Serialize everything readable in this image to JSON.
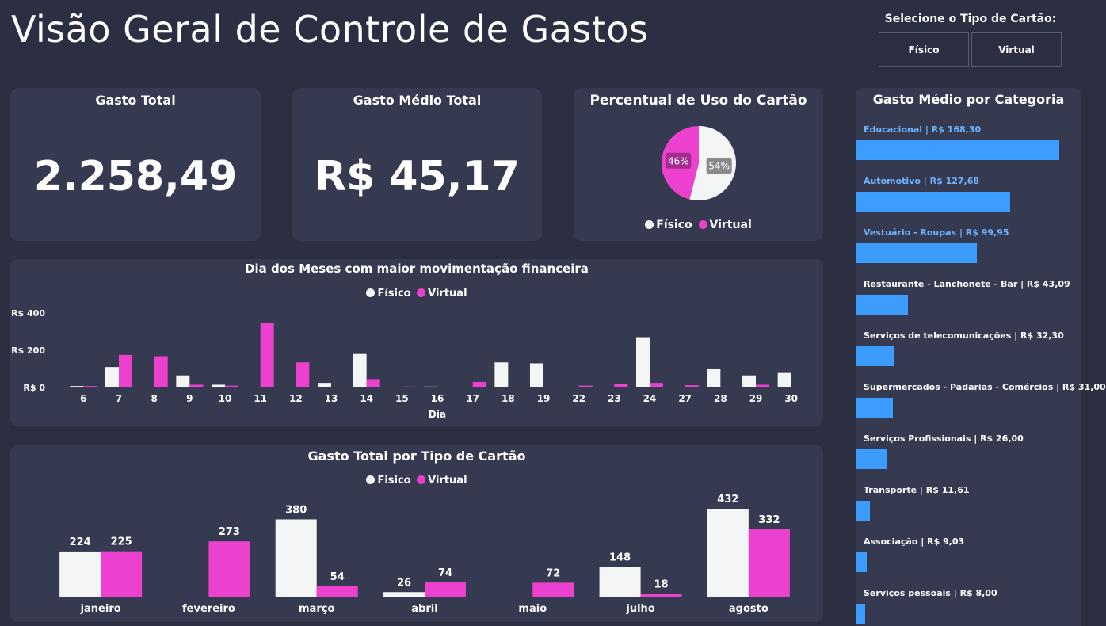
{
  "header": {
    "title": "Visão Geral de Controle de Gastos",
    "slicer_label": "Selecione o Tipo de Cartão:",
    "slicer_options": [
      "Físico",
      "Virtual"
    ]
  },
  "kpis": {
    "total": {
      "title": "Gasto Total",
      "value": "2.258,49"
    },
    "average": {
      "title": "Gasto Médio Total",
      "value": "R$ 45,17"
    }
  },
  "colors": {
    "fisico": "#f4f5f5",
    "virtual": "#ec41cf",
    "category_bar": "#3d9dff",
    "card": "#363a50",
    "background": "#2b2f41"
  },
  "pie": {
    "title": "Percentual de Uso do Cartão",
    "legend": [
      "Físico",
      "Virtual"
    ],
    "chart_data": {
      "type": "pie",
      "slices": [
        {
          "name": "Físico",
          "value": 54,
          "label": "54%"
        },
        {
          "name": "Virtual",
          "value": 46,
          "label": "46%"
        }
      ]
    }
  },
  "daily": {
    "title": "Dia dos Meses com maior movimentação financeira",
    "legend": [
      "Físico",
      "Virtual"
    ],
    "chart_data": {
      "type": "bar",
      "categories": [
        "6",
        "7",
        "8",
        "9",
        "10",
        "11",
        "12",
        "13",
        "14",
        "15",
        "16",
        "17",
        "18",
        "19",
        "22",
        "23",
        "24",
        "27",
        "28",
        "29",
        "30"
      ],
      "series": [
        {
          "name": "Físico",
          "values": [
            8,
            110,
            0,
            65,
            15,
            0,
            0,
            25,
            180,
            0,
            5,
            0,
            135,
            130,
            0,
            0,
            270,
            0,
            98,
            65,
            78
          ]
        },
        {
          "name": "Virtual",
          "values": [
            8,
            175,
            168,
            15,
            10,
            345,
            135,
            0,
            45,
            5,
            0,
            30,
            0,
            0,
            10,
            20,
            25,
            12,
            0,
            15,
            0
          ]
        }
      ],
      "xlabel": "Dia",
      "ylabel": "",
      "yticks": [
        "R$ 0",
        "R$ 200",
        "R$ 400"
      ],
      "ytick_values": [
        0,
        200,
        400
      ],
      "ylim": [
        0,
        400
      ]
    }
  },
  "monthly": {
    "title": "Gasto Total por Tipo de Cartão",
    "legend": [
      "Fisico",
      "Virtual"
    ],
    "chart_data": {
      "type": "bar",
      "categories": [
        "janeiro",
        "fevereiro",
        "março",
        "abril",
        "maio",
        "julho",
        "agosto"
      ],
      "series": [
        {
          "name": "Fisico",
          "values": [
            224,
            null,
            380,
            26,
            null,
            148,
            432
          ],
          "labels": [
            "224",
            "",
            "380",
            "26",
            "",
            "148",
            "432"
          ]
        },
        {
          "name": "Virtual",
          "values": [
            225,
            273,
            54,
            74,
            72,
            18,
            332
          ],
          "labels": [
            "225",
            "273",
            "54",
            "74",
            "72",
            "18",
            "332"
          ]
        }
      ]
    }
  },
  "categories": {
    "title": "Gasto Médio por Categoria",
    "chart_data": {
      "type": "bar",
      "orientation": "horizontal",
      "items": [
        {
          "label": "Educacional | R$ 168,30",
          "value": 168.3
        },
        {
          "label": "Automotivo | R$ 127,68",
          "value": 127.68
        },
        {
          "label": "Vestuário - Roupas | R$ 99,95",
          "value": 99.95
        },
        {
          "label": "Restaurante - Lanchonete - Bar | R$ 43,09",
          "value": 43.09
        },
        {
          "label": "Serviços de telecomunicações | R$ 32,30",
          "value": 32.3
        },
        {
          "label": "Supermercados - Padarias - Comércios | R$ 31,00",
          "value": 31.0
        },
        {
          "label": "Serviços Profissionais | R$ 26,00",
          "value": 26.0
        },
        {
          "label": "Transporte | R$ 11,61",
          "value": 11.61
        },
        {
          "label": "Associação | R$ 9,03",
          "value": 9.03
        },
        {
          "label": "Serviços pessoais | R$ 8,00",
          "value": 8.0
        }
      ]
    }
  }
}
